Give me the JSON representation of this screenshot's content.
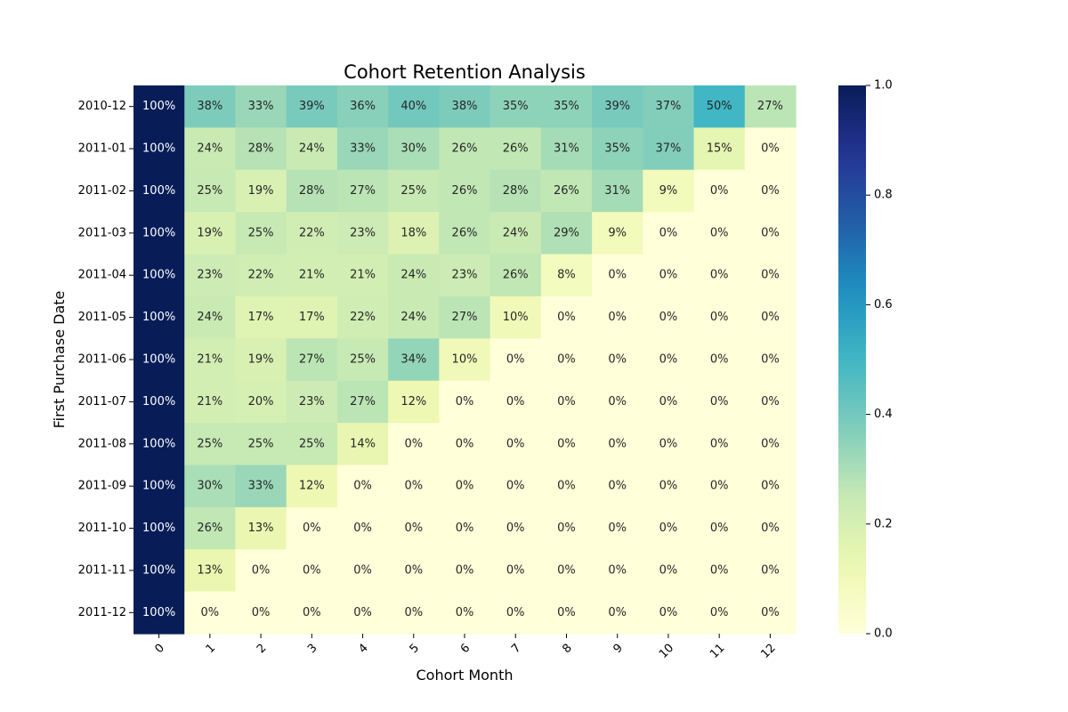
{
  "chart_data": {
    "type": "heatmap",
    "title": "Cohort Retention Analysis",
    "xlabel": "Cohort Month",
    "ylabel": "First Purchase Date",
    "x_categories": [
      "0",
      "1",
      "2",
      "3",
      "4",
      "5",
      "6",
      "7",
      "8",
      "9",
      "10",
      "11",
      "12"
    ],
    "y_categories": [
      "2010-12",
      "2011-01",
      "2011-02",
      "2011-03",
      "2011-04",
      "2011-05",
      "2011-06",
      "2011-07",
      "2011-08",
      "2011-09",
      "2011-10",
      "2011-11",
      "2011-12"
    ],
    "values": [
      [
        1.0,
        0.38,
        0.33,
        0.39,
        0.36,
        0.4,
        0.38,
        0.35,
        0.35,
        0.39,
        0.37,
        0.5,
        0.27
      ],
      [
        1.0,
        0.24,
        0.28,
        0.24,
        0.33,
        0.3,
        0.26,
        0.26,
        0.31,
        0.35,
        0.37,
        0.15,
        0.0
      ],
      [
        1.0,
        0.25,
        0.19,
        0.28,
        0.27,
        0.25,
        0.26,
        0.28,
        0.26,
        0.31,
        0.09,
        0.0,
        0.0
      ],
      [
        1.0,
        0.19,
        0.25,
        0.22,
        0.23,
        0.18,
        0.26,
        0.24,
        0.29,
        0.09,
        0.0,
        0.0,
        0.0
      ],
      [
        1.0,
        0.23,
        0.22,
        0.21,
        0.21,
        0.24,
        0.23,
        0.26,
        0.08,
        0.0,
        0.0,
        0.0,
        0.0
      ],
      [
        1.0,
        0.24,
        0.17,
        0.17,
        0.22,
        0.24,
        0.27,
        0.1,
        0.0,
        0.0,
        0.0,
        0.0,
        0.0
      ],
      [
        1.0,
        0.21,
        0.19,
        0.27,
        0.25,
        0.34,
        0.1,
        0.0,
        0.0,
        0.0,
        0.0,
        0.0,
        0.0
      ],
      [
        1.0,
        0.21,
        0.2,
        0.23,
        0.27,
        0.12,
        0.0,
        0.0,
        0.0,
        0.0,
        0.0,
        0.0,
        0.0
      ],
      [
        1.0,
        0.25,
        0.25,
        0.25,
        0.14,
        0.0,
        0.0,
        0.0,
        0.0,
        0.0,
        0.0,
        0.0,
        0.0
      ],
      [
        1.0,
        0.3,
        0.33,
        0.12,
        0.0,
        0.0,
        0.0,
        0.0,
        0.0,
        0.0,
        0.0,
        0.0,
        0.0
      ],
      [
        1.0,
        0.26,
        0.13,
        0.0,
        0.0,
        0.0,
        0.0,
        0.0,
        0.0,
        0.0,
        0.0,
        0.0,
        0.0
      ],
      [
        1.0,
        0.13,
        0.0,
        0.0,
        0.0,
        0.0,
        0.0,
        0.0,
        0.0,
        0.0,
        0.0,
        0.0,
        0.0
      ],
      [
        1.0,
        0.0,
        0.0,
        0.0,
        0.0,
        0.0,
        0.0,
        0.0,
        0.0,
        0.0,
        0.0,
        0.0,
        0.0
      ]
    ],
    "value_format": "percent",
    "colormap": "YlGnBu",
    "colorbar": {
      "range": [
        0.0,
        1.0
      ],
      "ticks": [
        0.0,
        0.2,
        0.4,
        0.6,
        0.8,
        1.0
      ],
      "tick_labels": [
        "0.0",
        "0.2",
        "0.4",
        "0.6",
        "0.8",
        "1.0"
      ]
    },
    "grid": false
  }
}
